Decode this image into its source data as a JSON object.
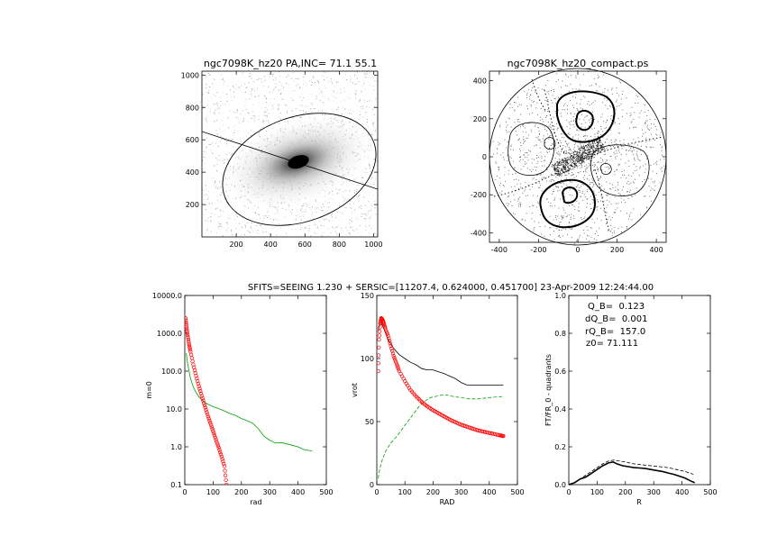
{
  "header": {
    "text": "SFITS=SEEING 1.230 + SERSIC=[11207.4, 0.624000, 0.451700]  23-Apr-2009 12:24:44.00"
  },
  "chart_data": [
    {
      "id": "image",
      "type": "heatmap",
      "title": "ngc7098K_hz20 PA,INC= 71.1 55.1",
      "xlim": [
        0,
        1024
      ],
      "ylim": [
        0,
        1024
      ],
      "xticks": [
        "200",
        "400",
        "600",
        "800",
        "1000"
      ],
      "yticks": [
        "200",
        "400",
        "600",
        "800",
        "1000"
      ],
      "ellipse": {
        "center": [
          545,
          470
        ],
        "pa_deg": 71.1,
        "inc_deg": 55.1
      },
      "grid": false
    },
    {
      "id": "compact",
      "type": "scatter",
      "title": "ngc7098K_hz20_compact.ps",
      "xlim": [
        -450,
        450
      ],
      "ylim": [
        -450,
        450
      ],
      "xticks": [
        "-400",
        "-200",
        "0",
        "200",
        "400"
      ],
      "yticks": [
        "-400",
        "-200",
        "0",
        "200",
        "400"
      ],
      "grid": false
    },
    {
      "id": "mq",
      "type": "line",
      "xlabel": "rad",
      "ylabel": "m=0",
      "xlim": [
        0,
        500
      ],
      "ylim": [
        0.1,
        10000
      ],
      "log_y": true,
      "xticks": [
        "0",
        "100",
        "200",
        "300",
        "400",
        "500"
      ],
      "yticks": [
        "10000.0",
        "1000.0",
        "100.0",
        "10.0",
        "1.0",
        "0.1"
      ],
      "series": [
        {
          "color": "#00a000",
          "style": "solid",
          "x": [
            5,
            10,
            20,
            30,
            40,
            50,
            60,
            70,
            80,
            90,
            100,
            120,
            140,
            160,
            180,
            200,
            220,
            240,
            260,
            280,
            300,
            320,
            340,
            360,
            380,
            400,
            420,
            440,
            450
          ],
          "y": [
            300,
            160,
            65,
            38,
            27,
            21,
            17.5,
            15,
            13.5,
            12.5,
            11.5,
            10.2,
            8.8,
            7.6,
            6.7,
            5.6,
            4.9,
            4.2,
            3.0,
            1.9,
            1.5,
            1.25,
            1.3,
            1.2,
            1.1,
            1.0,
            0.85,
            0.8,
            0.78
          ]
        },
        {
          "color": "#ff0000",
          "style": "circles",
          "x": [
            3,
            6,
            10,
            15,
            20,
            30,
            40,
            50,
            60,
            70,
            80,
            90,
            100,
            110,
            120,
            130,
            140,
            147
          ],
          "y": [
            2500,
            1500,
            900,
            520,
            330,
            150,
            75,
            40,
            22,
            12.5,
            7.2,
            4.3,
            2.6,
            1.55,
            0.95,
            0.55,
            0.31,
            0.1
          ]
        }
      ]
    },
    {
      "id": "vrot",
      "type": "line",
      "xlabel": "RAD",
      "ylabel": "vrot",
      "xlim": [
        0,
        500
      ],
      "ylim": [
        0,
        150
      ],
      "xticks": [
        "0",
        "100",
        "200",
        "300",
        "400",
        "500"
      ],
      "yticks": [
        "0",
        "50",
        "100",
        "150"
      ],
      "series": [
        {
          "color": "#000000",
          "style": "solid",
          "x": [
            5,
            10,
            15,
            20,
            30,
            40,
            60,
            80,
            100,
            120,
            140,
            160,
            180,
            200,
            220,
            240,
            260,
            280,
            300,
            320,
            340,
            360,
            400,
            450
          ],
          "y": [
            122,
            128,
            128,
            126,
            121,
            115,
            108,
            103,
            100,
            97,
            95,
            92,
            91,
            91,
            89.5,
            88,
            86,
            84,
            81,
            79,
            79,
            79,
            79,
            79
          ]
        },
        {
          "color": "#00a000",
          "style": "dashed",
          "x": [
            5,
            10,
            20,
            30,
            50,
            70,
            90,
            110,
            130,
            150,
            170,
            190,
            210,
            230,
            250,
            270,
            300,
            330,
            360,
            400,
            450
          ],
          "y": [
            5,
            12,
            20,
            26,
            33,
            38,
            44,
            50,
            56,
            62,
            66,
            69,
            70,
            71,
            71,
            70,
            69,
            68,
            68,
            69,
            70
          ]
        },
        {
          "color": "#ff0000",
          "style": "circles",
          "x": [
            5,
            8,
            12,
            16,
            20,
            25,
            30,
            40,
            50,
            60,
            70,
            80,
            100,
            120,
            140,
            160,
            180,
            200,
            220,
            240,
            260,
            280,
            300,
            320,
            340,
            360,
            380,
            400,
            420,
            440,
            450
          ],
          "y": [
            90,
            115,
            128,
            132,
            131,
            128,
            124,
            118,
            110,
            102,
            96,
            90,
            82,
            75,
            70,
            65.5,
            62,
            59,
            56.5,
            54,
            51.5,
            49.5,
            47.5,
            46,
            44.5,
            43,
            42,
            41,
            40,
            39,
            38.5
          ]
        }
      ]
    },
    {
      "id": "qb",
      "type": "line",
      "xlabel": "R",
      "ylabel": "FT/FR_0 - quadrants",
      "xlim": [
        0,
        500
      ],
      "ylim": [
        0,
        1.0
      ],
      "xticks": [
        "0",
        "100",
        "200",
        "300",
        "400",
        "500"
      ],
      "yticks": [
        "0.0",
        "0.2",
        "0.4",
        "0.6",
        "0.8",
        "1.0"
      ],
      "annotations": [
        "Q_B=  0.123",
        "dQ_B=  0.001",
        "rQ_B=  157.0",
        "z0= 71.111"
      ],
      "series": [
        {
          "color": "#000000",
          "style": "solid",
          "x": [
            0,
            20,
            40,
            60,
            80,
            100,
            120,
            140,
            157,
            170,
            190,
            210,
            230,
            250,
            270,
            290,
            310,
            330,
            350,
            370,
            390,
            410,
            430,
            445
          ],
          "y": [
            0.0,
            0.01,
            0.03,
            0.04,
            0.06,
            0.08,
            0.1,
            0.115,
            0.12,
            0.11,
            0.1,
            0.095,
            0.09,
            0.088,
            0.085,
            0.08,
            0.075,
            0.07,
            0.062,
            0.055,
            0.045,
            0.035,
            0.02,
            0.01
          ]
        },
        {
          "color": "#000000",
          "style": "dashed",
          "x": [
            0,
            20,
            40,
            60,
            80,
            100,
            120,
            140,
            160,
            180,
            200,
            230,
            260,
            290,
            320,
            350,
            380,
            410,
            440
          ],
          "y": [
            0.0,
            0.012,
            0.03,
            0.05,
            0.07,
            0.09,
            0.11,
            0.125,
            0.13,
            0.125,
            0.12,
            0.11,
            0.105,
            0.1,
            0.095,
            0.09,
            0.08,
            0.07,
            0.055
          ]
        }
      ]
    }
  ]
}
